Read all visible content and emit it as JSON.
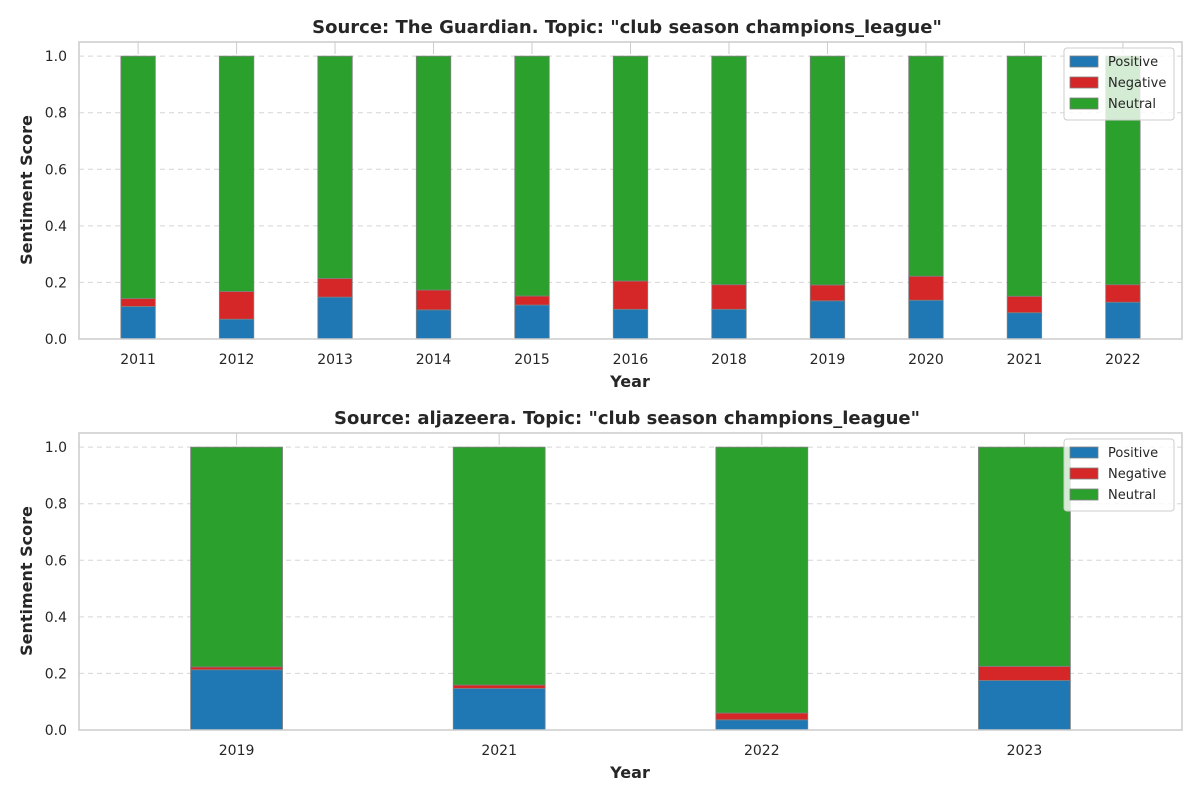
{
  "chart_data": [
    {
      "type": "bar",
      "stacked": true,
      "title": "Source: The Guardian. Topic: \"club season champions_league\"",
      "xlabel": "Year",
      "ylabel": "Sentiment Score",
      "categories": [
        "2011",
        "2012",
        "2013",
        "2014",
        "2015",
        "2016",
        "2018",
        "2019",
        "2020",
        "2021",
        "2022"
      ],
      "ylim": [
        0,
        1.05
      ],
      "yticks": [
        "0.0",
        "0.2",
        "0.4",
        "0.6",
        "0.8",
        "1.0"
      ],
      "series": [
        {
          "name": "Positive",
          "color": "#1f77b4",
          "values": [
            0.115,
            0.07,
            0.148,
            0.103,
            0.12,
            0.105,
            0.105,
            0.135,
            0.137,
            0.093,
            0.13
          ]
        },
        {
          "name": "Negative",
          "color": "#d62728",
          "values": [
            0.028,
            0.098,
            0.066,
            0.07,
            0.032,
            0.1,
            0.087,
            0.056,
            0.085,
            0.058,
            0.062
          ]
        },
        {
          "name": "Neutral",
          "color": "#2ca02c",
          "values": [
            0.857,
            0.832,
            0.786,
            0.827,
            0.848,
            0.795,
            0.808,
            0.809,
            0.778,
            0.849,
            0.808
          ]
        }
      ],
      "grid": "y-dashed",
      "legend": "top-right"
    },
    {
      "type": "bar",
      "stacked": true,
      "title": "Source: aljazeera. Topic: \"club season champions_league\"",
      "xlabel": "Year",
      "ylabel": "Sentiment Score",
      "categories": [
        "2019",
        "2021",
        "2022",
        "2023"
      ],
      "ylim": [
        0,
        1.05
      ],
      "yticks": [
        "0.0",
        "0.2",
        "0.4",
        "0.6",
        "0.8",
        "1.0"
      ],
      "series": [
        {
          "name": "Positive",
          "color": "#1f77b4",
          "values": [
            0.213,
            0.147,
            0.036,
            0.175
          ]
        },
        {
          "name": "Negative",
          "color": "#d62728",
          "values": [
            0.01,
            0.012,
            0.024,
            0.05
          ]
        },
        {
          "name": "Neutral",
          "color": "#2ca02c",
          "values": [
            0.777,
            0.841,
            0.94,
            0.775
          ]
        }
      ],
      "grid": "y-dashed",
      "legend": "top-right"
    }
  ]
}
